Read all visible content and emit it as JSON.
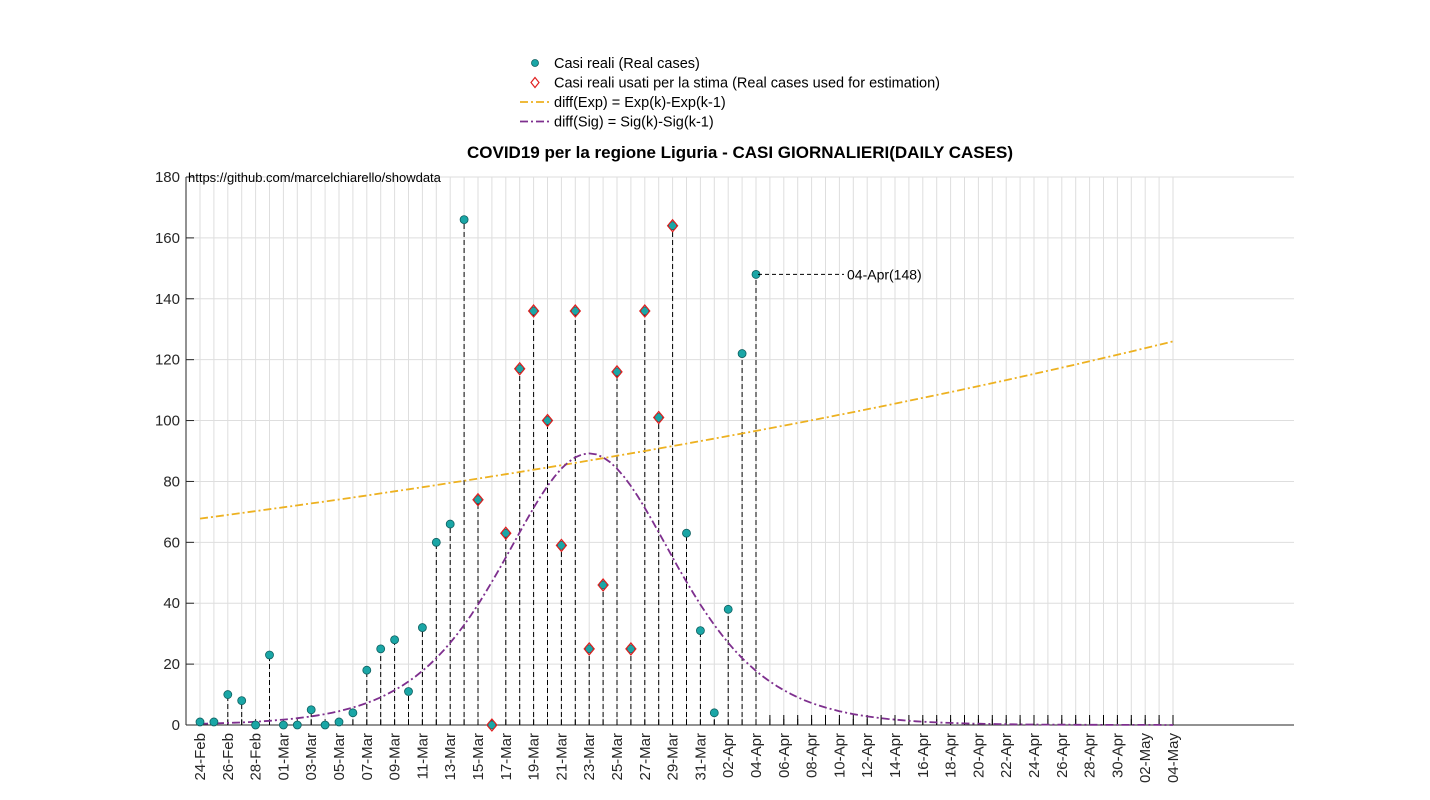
{
  "chart_data": {
    "type": "scatter",
    "title": "COVID19 per la regione Liguria - CASI GIORNALIERI(DAILY CASES)",
    "source_text": "https://github.com/marcelchiarello/showdata",
    "xlabel": "",
    "ylabel": "",
    "ylim": [
      0,
      180
    ],
    "y_ticks": [
      0,
      20,
      40,
      60,
      80,
      100,
      120,
      140,
      160,
      180
    ],
    "x_tick_labels": [
      "24-Feb",
      "26-Feb",
      "28-Feb",
      "01-Mar",
      "03-Mar",
      "05-Mar",
      "07-Mar",
      "09-Mar",
      "11-Mar",
      "13-Mar",
      "15-Mar",
      "17-Mar",
      "19-Mar",
      "21-Mar",
      "23-Mar",
      "25-Mar",
      "27-Mar",
      "29-Mar",
      "31-Mar",
      "02-Apr",
      "04-Apr",
      "06-Apr",
      "08-Apr",
      "10-Apr",
      "12-Apr",
      "14-Apr",
      "16-Apr",
      "18-Apr",
      "20-Apr",
      "22-Apr",
      "24-Apr",
      "26-Apr",
      "28-Apr",
      "30-Apr",
      "02-May",
      "04-May"
    ],
    "grid": true,
    "legend_position": "top-center",
    "legend": [
      {
        "label": "Casi reali (Real cases)",
        "marker": "circle",
        "color": "#1aa6a6"
      },
      {
        "label": "Casi reali usati per la stima (Real cases used for estimation)",
        "marker": "diamond",
        "color": "#e02020"
      },
      {
        "label": "diff(Exp) = Exp(k)-Exp(k-1)",
        "line": "dash-dot",
        "color": "#edb120"
      },
      {
        "label": "diff(Sig) = Sig(k)-Sig(k-1)",
        "line": "dash-dot",
        "color": "#7e2f8e"
      }
    ],
    "series": [
      {
        "name": "Casi reali (Real cases)",
        "x": [
          "24-Feb",
          "25-Feb",
          "26-Feb",
          "27-Feb",
          "28-Feb",
          "29-Feb",
          "01-Mar",
          "02-Mar",
          "03-Mar",
          "04-Mar",
          "05-Mar",
          "06-Mar",
          "07-Mar",
          "08-Mar",
          "09-Mar",
          "10-Mar",
          "11-Mar",
          "12-Mar",
          "13-Mar",
          "14-Mar",
          "15-Mar",
          "16-Mar",
          "17-Mar",
          "18-Mar",
          "19-Mar",
          "20-Mar",
          "21-Mar",
          "22-Mar",
          "23-Mar",
          "24-Mar",
          "25-Mar",
          "26-Mar",
          "27-Mar",
          "28-Mar",
          "29-Mar",
          "30-Mar",
          "31-Mar",
          "01-Apr",
          "02-Apr",
          "03-Apr",
          "04-Apr"
        ],
        "y": [
          1,
          1,
          10,
          8,
          0,
          23,
          0,
          0,
          5,
          0,
          1,
          4,
          18,
          25,
          28,
          11,
          32,
          60,
          66,
          166,
          74,
          0,
          63,
          117,
          136,
          100,
          59,
          136,
          25,
          46,
          116,
          25,
          136,
          101,
          164,
          63,
          31,
          4,
          38,
          122,
          148
        ]
      },
      {
        "name": "Casi reali usati per la stima (Real cases used for estimation)",
        "x": [
          "15-Mar",
          "16-Mar",
          "17-Mar",
          "18-Mar",
          "19-Mar",
          "20-Mar",
          "21-Mar",
          "22-Mar",
          "23-Mar",
          "24-Mar",
          "25-Mar",
          "26-Mar",
          "27-Mar",
          "28-Mar",
          "29-Mar"
        ],
        "y": [
          74,
          0,
          63,
          117,
          136,
          100,
          59,
          136,
          25,
          46,
          116,
          25,
          136,
          101,
          164
        ]
      },
      {
        "name": "diff(Exp) = Exp(k)-Exp(k-1)",
        "x_range": [
          "24-Feb",
          "04-May"
        ],
        "y_start": 67.8,
        "y_end": 126.0
      },
      {
        "name": "diff(Sig) = Sig(k)-Sig(k-1)",
        "peak_date": "23-Mar",
        "peak_value": 89.2,
        "start_value": 4.5,
        "end_value": 0.4
      }
    ],
    "annotations": [
      {
        "text": "04-Apr(148)",
        "x": "04-Apr",
        "y": 148
      }
    ]
  }
}
